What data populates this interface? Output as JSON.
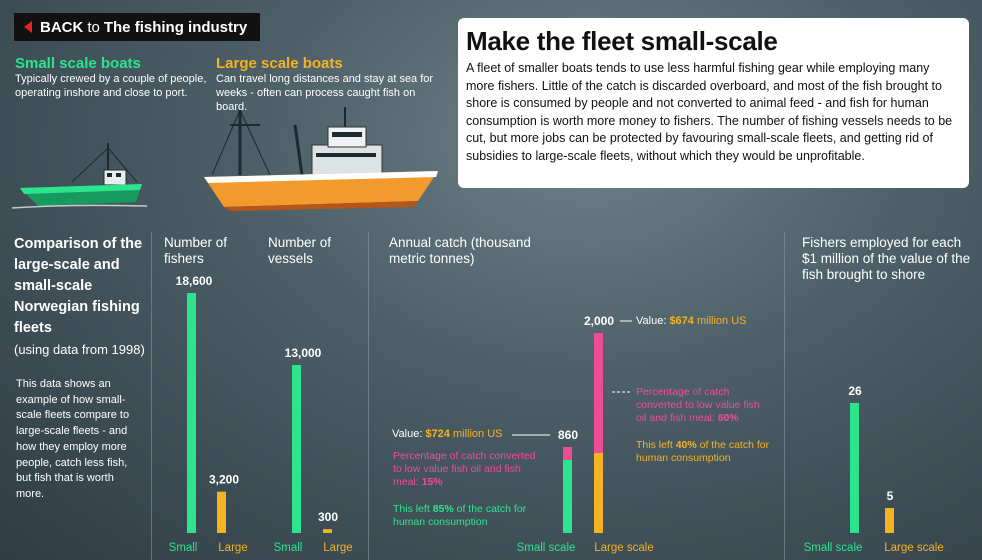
{
  "back": {
    "arrow_icon": "left-triangle-icon",
    "label_a": "BACK",
    "label_to": "to",
    "label_b": "The fishing industry"
  },
  "boats": {
    "small": {
      "title": "Small scale boats",
      "desc": "Typically crewed by a couple of people, operating inshore and close to port."
    },
    "large": {
      "title": "Large scale boats",
      "desc": "Can travel long distances and stay at sea for weeks - often can process caught fish on board."
    }
  },
  "info": {
    "title": "Make the fleet small-scale",
    "body": "A fleet of smaller boats tends to use less harmful fishing gear while employing many more fishers. Little of the catch is discarded overboard, and most of the fish brought to shore is consumed by people and not converted to animal feed - and fish for human consumption is worth more money to fishers. The number of fishing vessels needs to be cut, but more jobs can be protected by favouring small-scale fleets, and getting rid of subsidies to large-scale fleets, without which they would be unprofitable."
  },
  "comparison": {
    "title": "Comparison of the large-scale and small-scale Norwegian fishing fleets",
    "subtitle": "(using data from 1998)",
    "desc": "This data shows an example of how small-scale fleets compare to large-scale fleets - and how they employ more people, catch less fish, but fish that is worth more."
  },
  "colors": {
    "small": "#2ce48e",
    "large": "#f5b324",
    "pink": "#ee4d95"
  },
  "chart_data": [
    {
      "type": "bar",
      "title": "Number of fishers",
      "categories": [
        "Small scale",
        "Large scale"
      ],
      "values": [
        18600,
        3200
      ],
      "labels": [
        "18,600",
        "3,200"
      ]
    },
    {
      "type": "bar",
      "title": "Number of vessels",
      "categories": [
        "Small scale",
        "Large scale"
      ],
      "values": [
        13000,
        300
      ],
      "labels": [
        "13,000",
        "300"
      ]
    },
    {
      "type": "bar",
      "title": "Annual catch (thousand metric tonnes)",
      "categories": [
        "Small scale",
        "Large scale"
      ],
      "values": [
        860,
        2000
      ],
      "labels": [
        "860",
        "2,000"
      ],
      "segments": {
        "small": {
          "fishmeal_pct": 15,
          "human_pct": 85
        },
        "large": {
          "fishmeal_pct": 60,
          "human_pct": 40
        }
      },
      "value_musd": {
        "small": 724,
        "large": 674
      }
    },
    {
      "type": "bar",
      "title": "Fishers employed for each $1 million of the value of the fish brought to shore",
      "categories": [
        "Small scale",
        "Large scale"
      ],
      "values": [
        26,
        5
      ],
      "labels": [
        "26",
        "5"
      ]
    }
  ],
  "catch_notes": {
    "small_value_pre": "Value:",
    "small_value_num": "$724",
    "small_value_post": "million US",
    "large_value_pre": "Value:",
    "large_value_num": "$674",
    "large_value_post": "million US",
    "small_pink": "Percentage of catch converted to low value fish oil and fish meal:",
    "small_pink_pct": "15%",
    "small_green_pre": "This left",
    "small_green_pct": "85%",
    "small_green_post": "of the catch for human consumption",
    "large_pink": "Percentage of catch converted to low value fish oil and fish meal:",
    "large_pink_pct": "60%",
    "large_yellow_pre": "This left",
    "large_yellow_pct": "40%",
    "large_yellow_post": "of the catch for human consumption"
  },
  "headers": {
    "fishers": "Number of fishers",
    "vessels": "Number of vessels",
    "catch": "Annual catch (thousand metric tonnes)",
    "employed": "Fishers employed for each $1 million of the value of the fish brought to shore"
  },
  "axis": {
    "small": "Small scale",
    "large": "Large scale",
    "small_cut": "Small",
    "large_cut": "Large"
  }
}
